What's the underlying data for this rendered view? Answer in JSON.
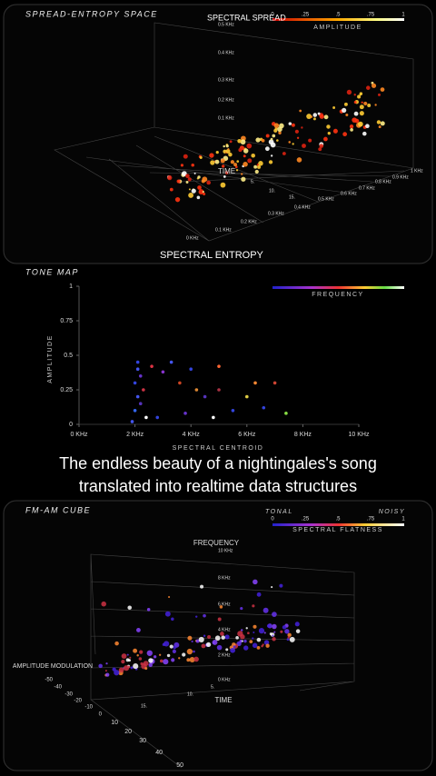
{
  "spread_entropy": {
    "title": "SPREAD-ENTROPY SPACE",
    "legend_title": "SPECTRAL SPREAD",
    "legend_caption": "AMPLITUDE",
    "legend_ticks": [
      "0",
      ".25",
      ".5",
      ".75",
      "1"
    ],
    "vertical_ticks": [
      "0.5 KHz",
      "0.4 KHz",
      "0.3 KHz",
      "0.2 KHz",
      "0.1 KHz"
    ],
    "entropy_ticks": [
      "0 KHz",
      "0.1 KHz",
      "0.2 KHz",
      "0.3 KHz",
      "0.4 KHz",
      "0.5 KHz",
      "0.6 KHz",
      "0.7 KHz",
      "0.8 KHz",
      "0.9 KHz",
      "1 KHz"
    ],
    "time_ticks": [
      "5.",
      "10.",
      "15."
    ],
    "time_label": "TIME",
    "entropy_label": "SPECTRAL ENTROPY"
  },
  "chart_data": {
    "type": "scatter",
    "title": "TONE MAP",
    "legend_caption": "FREQUENCY",
    "xlabel": "SPECTRAL CENTROID",
    "ylabel": "AMPLITUDE",
    "xlim": [
      0,
      10
    ],
    "xticks": [
      {
        "value": 0,
        "label": "0 KHz"
      },
      {
        "value": 2,
        "label": "2 KHz"
      },
      {
        "value": 4,
        "label": "4 KHz"
      },
      {
        "value": 6,
        "label": "6 KHz"
      },
      {
        "value": 8,
        "label": "8 KHz"
      },
      {
        "value": 10,
        "label": "10 KHz"
      }
    ],
    "ylim": [
      0,
      1
    ],
    "yticks": [
      0,
      0.25,
      0.5,
      0.75,
      1
    ],
    "x": [
      2.1,
      2.1,
      2.2,
      2.0,
      2.3,
      2.1,
      2.2,
      2.0,
      2.4,
      2.6,
      3.0,
      3.3,
      3.6,
      4.0,
      4.2,
      4.5,
      5.0,
      5.0,
      4.8,
      5.5,
      6.0,
      6.3,
      6.6,
      7.0,
      7.4,
      2.8,
      3.8,
      1.9
    ],
    "values": [
      0.45,
      0.4,
      0.35,
      0.3,
      0.25,
      0.2,
      0.15,
      0.1,
      0.05,
      0.42,
      0.38,
      0.45,
      0.3,
      0.4,
      0.25,
      0.2,
      0.42,
      0.25,
      0.05,
      0.1,
      0.2,
      0.3,
      0.12,
      0.3,
      0.08,
      0.05,
      0.08,
      0.02
    ],
    "colors": [
      "#3344dd",
      "#4455ee",
      "#6633cc",
      "#3344dd",
      "#cc3344",
      "#4455ee",
      "#5533bb",
      "#3366ee",
      "#ffffff",
      "#dd3344",
      "#8833cc",
      "#4455ee",
      "#cc4422",
      "#3344dd",
      "#dd8833",
      "#5533bb",
      "#ff6633",
      "#aa3344",
      "#ffffff",
      "#3344dd",
      "#ddcc44",
      "#ff8833",
      "#3344dd",
      "#cc4433",
      "#88dd44",
      "#3344dd",
      "#6633cc",
      "#4455ee"
    ]
  },
  "caption": [
    "The endless beauty of a nightingales's song",
    "translated into realtime data structures"
  ],
  "fm_am_cube": {
    "title": "FM-AM CUBE",
    "legend_left": "TONAL",
    "legend_right": "NOISY",
    "legend_ticks": [
      "0",
      ".25",
      ".5",
      ".75",
      "1"
    ],
    "legend_caption": "SPECTRAL FLATNESS",
    "frequency_label": "FREQUENCY",
    "frequency_ticks": [
      "10 KHz",
      "8 KHz",
      "6 KHz",
      "4 KHz",
      "2 KHz",
      "0 KHz"
    ],
    "am_label": "AMPLITUDE MODULATION",
    "am_ticks": [
      "-50",
      "-40",
      "-30",
      "-20",
      "-10",
      "0"
    ],
    "fm_ticks": [
      "10",
      "20",
      "30",
      "40",
      "50"
    ],
    "time_label": "TIME",
    "time_ticks": [
      "5.",
      "10.",
      "15."
    ]
  }
}
